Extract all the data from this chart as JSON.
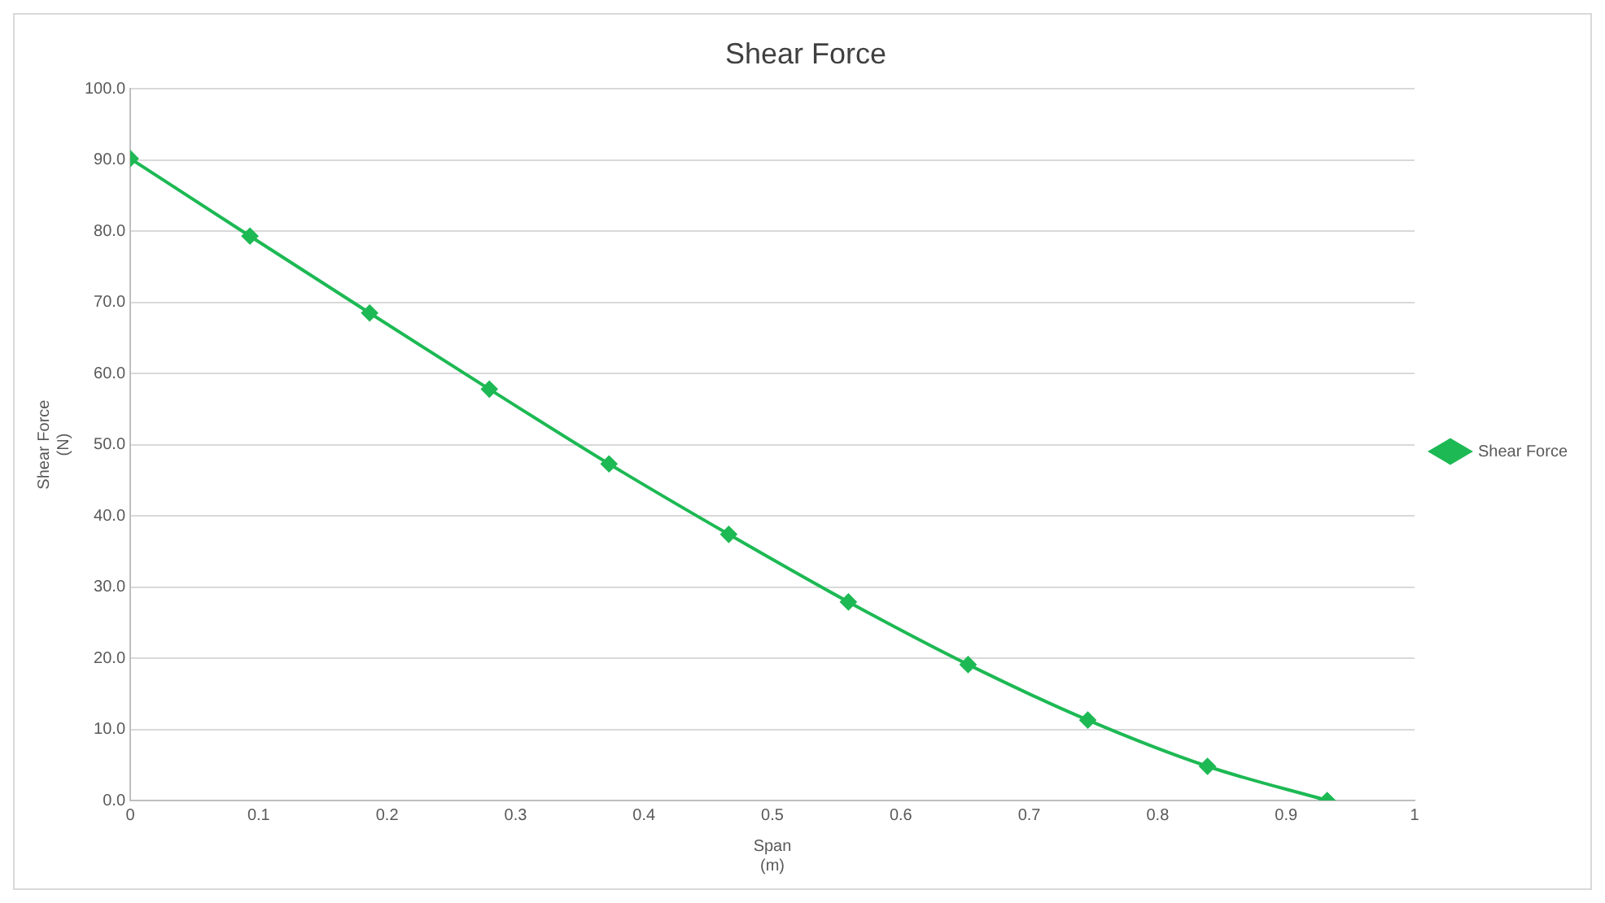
{
  "chart_data": {
    "type": "line",
    "title": "Shear Force",
    "xlabel": "Span\n(m)",
    "ylabel": "Shear Force\n(N)",
    "x": [
      0,
      0.0932,
      0.1864,
      0.2796,
      0.3728,
      0.466,
      0.5592,
      0.6524,
      0.7456,
      0.8388,
      0.932
    ],
    "series": [
      {
        "name": "Shear Force",
        "color": "#1db954",
        "values": [
          90.2,
          79.3,
          68.5,
          57.8,
          47.3,
          37.4,
          27.9,
          19.1,
          11.3,
          4.8,
          0.0
        ]
      }
    ],
    "xlim": [
      0,
      1
    ],
    "xticks": [
      0,
      0.1,
      0.2,
      0.3,
      0.4,
      0.5,
      0.6,
      0.7,
      0.8,
      0.9,
      1
    ],
    "ylim": [
      0,
      100
    ],
    "yticks": [
      {
        "value": 0,
        "label": "0.0"
      },
      {
        "value": 10,
        "label": "10.0"
      },
      {
        "value": 20,
        "label": "20.0"
      },
      {
        "value": 30,
        "label": "30.0"
      },
      {
        "value": 40,
        "label": "40.0"
      },
      {
        "value": 50,
        "label": "50.0"
      },
      {
        "value": 60,
        "label": "60.0"
      },
      {
        "value": 70,
        "label": "70.0"
      },
      {
        "value": 80,
        "label": "80.0"
      },
      {
        "value": 90,
        "label": "90.0"
      },
      {
        "value": 100,
        "label": "100.0"
      }
    ],
    "grid": "y",
    "legend": "right",
    "marker": "diamond",
    "line_style": "solid"
  }
}
